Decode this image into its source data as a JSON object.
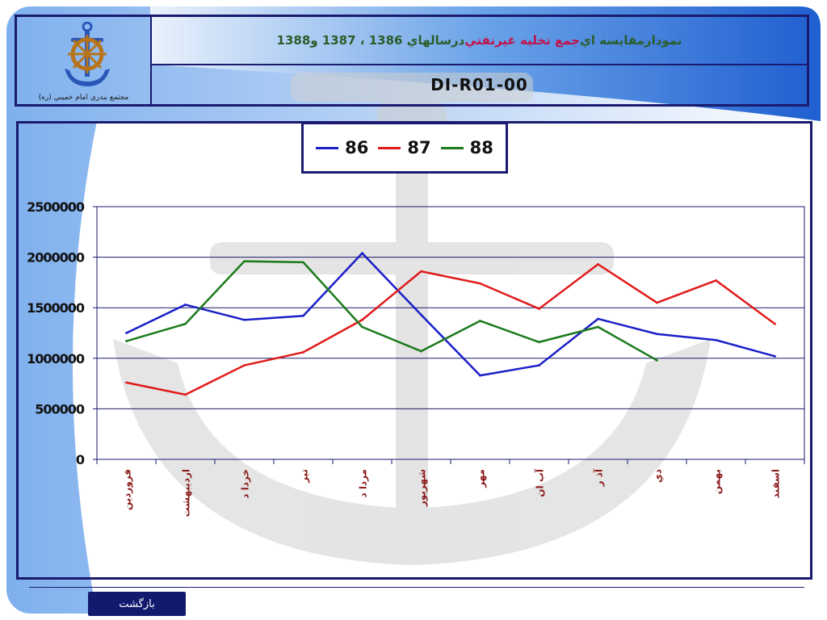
{
  "header": {
    "title_part1": "نمودارمقايسه اي ",
    "title_part2": "جمع تخليه غيرنفتي",
    "title_part3": " درسالهاي 1386 ، 1387 و1388",
    "code": "DI-R01-00",
    "logo_caption": "مجتمع بندري امام خميني (ره)"
  },
  "colors": {
    "series_86": "#1a1fc8",
    "series_87": "#e01b1b",
    "series_88": "#1c7a1c",
    "frame": "#1a1a6e",
    "tick_label": "#8b1a1a"
  },
  "chart_data": {
    "type": "line",
    "title": "",
    "xlabel": "",
    "ylabel": "",
    "ylim": [
      0,
      2500000
    ],
    "yticks": [
      {
        "value": 0,
        "label": "0"
      },
      {
        "value": 500000,
        "label": "500000"
      },
      {
        "value": 1000000,
        "label": "1000000"
      },
      {
        "value": 1500000,
        "label": "1500000"
      },
      {
        "value": 2000000,
        "label": "2000000"
      },
      {
        "value": 2500000,
        "label": "2500000"
      }
    ],
    "grid": true,
    "legend_position": "top-center",
    "categories": [
      "فروردين",
      "ارديبهشت",
      "خردا د",
      "تير",
      "مردا د",
      "شهريور",
      "مهر",
      "آب ان",
      "آذ ر",
      "دي",
      "بهمن",
      "اسفند"
    ],
    "series": [
      {
        "name": "86",
        "values": [
          1250000,
          1530000,
          1380000,
          1420000,
          2040000,
          1430000,
          830000,
          930000,
          1390000,
          1240000,
          1180000,
          1020000
        ]
      },
      {
        "name": "87",
        "values": [
          760000,
          640000,
          930000,
          1060000,
          1380000,
          1860000,
          1740000,
          1490000,
          1930000,
          1550000,
          1770000,
          1340000
        ]
      },
      {
        "name": "88",
        "values": [
          1170000,
          1340000,
          1960000,
          1950000,
          1310000,
          1070000,
          1370000,
          1160000,
          1310000,
          980000,
          null,
          null
        ]
      }
    ]
  },
  "footer": {
    "back_label": "بازگشت"
  }
}
